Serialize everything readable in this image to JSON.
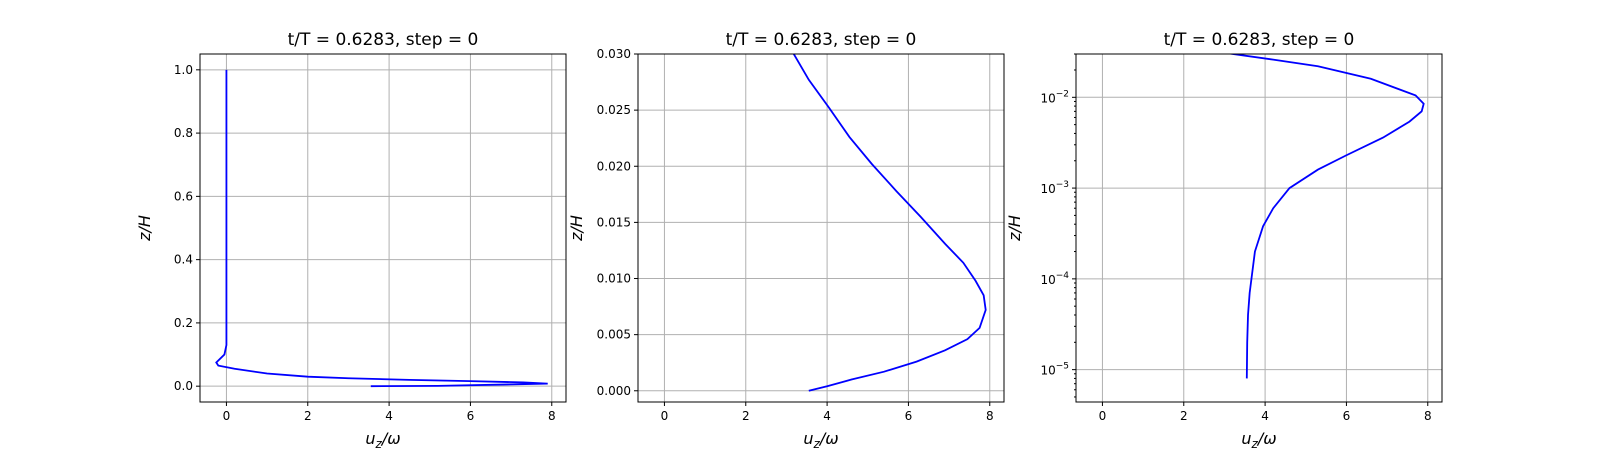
{
  "colors": {
    "line": "#0000ff",
    "grid": "#b0b0b0",
    "axes": "#000000"
  },
  "chart_data": [
    {
      "type": "line",
      "title": "t/T = 0.6283, step = 0",
      "xlabel": "u_z/ω",
      "ylabel": "z/H",
      "xlim": [
        -0.65,
        8.35
      ],
      "ylim": [
        -0.05,
        1.05
      ],
      "yscale": "linear",
      "grid": true,
      "xticks": [
        0,
        2,
        4,
        6,
        8
      ],
      "xtick_labels": [
        "0",
        "2",
        "4",
        "6",
        "8"
      ],
      "yticks": [
        0.0,
        0.2,
        0.4,
        0.6,
        0.8,
        1.0
      ],
      "ytick_labels": [
        "0.0",
        "0.2",
        "0.4",
        "0.6",
        "0.8",
        "1.0"
      ],
      "series": [
        {
          "x": [
            3.55,
            5.2,
            7.9,
            7.3,
            6.0,
            4.5,
            3.0,
            2.0,
            1.0,
            0.2,
            -0.2,
            -0.25,
            -0.05,
            0.0,
            0.0,
            0.0,
            0.0,
            0.0
          ],
          "y": [
            0.0,
            0.001,
            0.008,
            0.012,
            0.016,
            0.02,
            0.025,
            0.03,
            0.04,
            0.055,
            0.065,
            0.075,
            0.1,
            0.13,
            0.2,
            0.4,
            0.7,
            1.0
          ]
        }
      ]
    },
    {
      "type": "line",
      "title": "t/T = 0.6283, step = 0",
      "xlabel": "u_z/ω",
      "ylabel": "z/H",
      "xlim": [
        -0.65,
        8.35
      ],
      "ylim": [
        -0.001,
        0.03
      ],
      "yscale": "linear",
      "grid": true,
      "xticks": [
        0,
        2,
        4,
        6,
        8
      ],
      "xtick_labels": [
        "0",
        "2",
        "4",
        "6",
        "8"
      ],
      "yticks": [
        0.0,
        0.005,
        0.01,
        0.015,
        0.02,
        0.025,
        0.03
      ],
      "ytick_labels": [
        "0.000",
        "0.005",
        "0.010",
        "0.015",
        "0.020",
        "0.025",
        "0.030"
      ],
      "series": [
        {
          "x": [
            3.55,
            4.0,
            4.6,
            5.4,
            6.2,
            6.9,
            7.45,
            7.75,
            7.9,
            7.85,
            7.65,
            7.35,
            6.9,
            6.3,
            5.7,
            5.1,
            4.55,
            4.05,
            3.55,
            3.1
          ],
          "y": [
            0.0,
            0.0004,
            0.001,
            0.0017,
            0.0026,
            0.0036,
            0.0046,
            0.0056,
            0.0072,
            0.0085,
            0.0098,
            0.0114,
            0.0131,
            0.0155,
            0.0178,
            0.0202,
            0.0226,
            0.0252,
            0.0277,
            0.0305
          ]
        }
      ]
    },
    {
      "type": "line",
      "title": "t/T = 0.6283, step = 0",
      "xlabel": "u_z/ω",
      "ylabel": "z/H",
      "xlim": [
        -0.65,
        8.35
      ],
      "ylim": [
        4.4e-06,
        0.03
      ],
      "yscale": "log",
      "grid": true,
      "xticks": [
        0,
        2,
        4,
        6,
        8
      ],
      "xtick_labels": [
        "0",
        "2",
        "4",
        "6",
        "8"
      ],
      "yticks": [
        1e-05,
        0.0001,
        0.001,
        0.01
      ],
      "ytick_labels": [
        {
          "base": "10",
          "exp": "−5"
        },
        {
          "base": "10",
          "exp": "−4"
        },
        {
          "base": "10",
          "exp": "−3"
        },
        {
          "base": "10",
          "exp": "−2"
        }
      ],
      "series": [
        {
          "x": [
            3.55,
            3.56,
            3.58,
            3.62,
            3.75,
            3.95,
            4.2,
            4.6,
            5.3,
            6.0,
            6.9,
            7.55,
            7.85,
            7.9,
            7.7,
            6.6,
            5.3,
            4.2,
            3.1
          ],
          "y": [
            8e-06,
            2e-05,
            4e-05,
            7e-05,
            0.0002,
            0.00038,
            0.0006,
            0.001,
            0.0016,
            0.0023,
            0.0036,
            0.0054,
            0.007,
            0.0085,
            0.0105,
            0.016,
            0.022,
            0.026,
            0.0305
          ]
        }
      ]
    }
  ]
}
